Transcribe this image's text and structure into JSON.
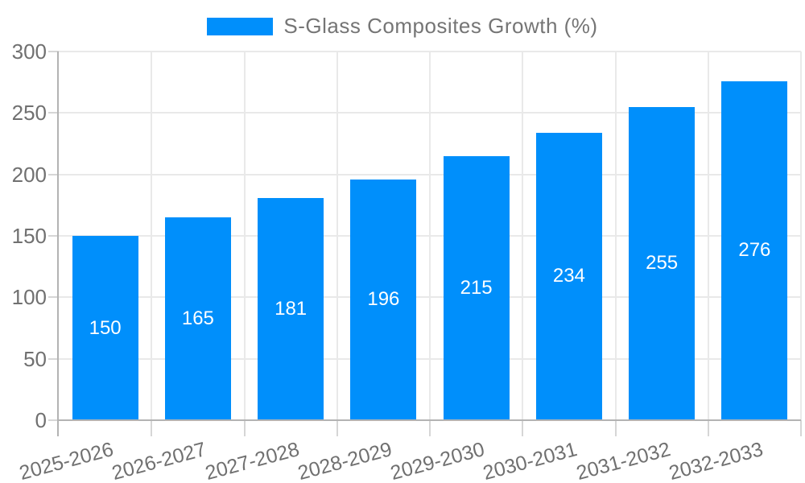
{
  "legend": {
    "label": "S-Glass Composites Growth (%)",
    "swatch_color": "#008ffb"
  },
  "chart_data": {
    "type": "bar",
    "title": "S-Glass Composites Growth (%)",
    "categories": [
      "2025-2026",
      "2026-2027",
      "2027-2028",
      "2028-2029",
      "2029-2030",
      "2030-2031",
      "2031-2032",
      "2032-2033"
    ],
    "series": [
      {
        "name": "S-Glass Composites Growth (%)",
        "values": [
          150,
          165,
          181,
          196,
          215,
          234,
          255,
          276
        ]
      }
    ],
    "xlabel": "",
    "ylabel": "",
    "ylim": [
      0,
      300
    ],
    "yticks": [
      0,
      50,
      100,
      150,
      200,
      250,
      300
    ],
    "grid": true,
    "legend_position": "top",
    "xtick_rotation_deg": -15,
    "bar_color": "#008ffb",
    "value_label_color": "#ffffff",
    "axis_text_color": "#707070",
    "grid_color": "#e9e9e9",
    "tick_color": "#d6d6d6",
    "axis_line_color": "#b3b3b3",
    "background": "#ffffff"
  }
}
